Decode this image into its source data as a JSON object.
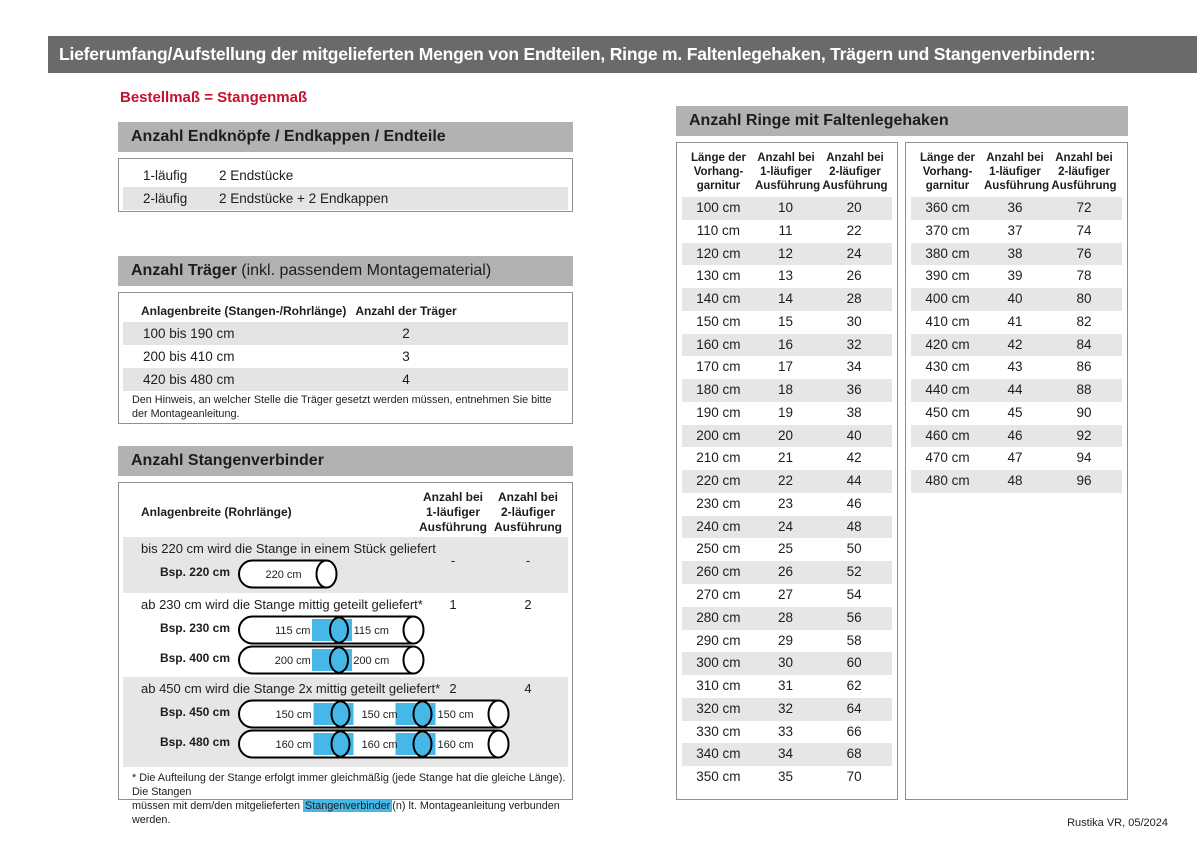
{
  "page": {
    "title": "Lieferumfang/Aufstellung der mitgelieferten Mengen von Endteilen, Ringe m. Faltenlegehaken, Trägern und Stangenverbindern:",
    "subtitle": "Bestellmaß = Stangenmaß",
    "footer": "Rustika VR, 05/2024"
  },
  "colors": {
    "header_bar": "#6a6a6a",
    "section_bar": "#b2b2b2",
    "stripe": "#e6e6e6",
    "accent_red": "#c8102e",
    "accent_blue": "#45b8e8"
  },
  "endteile": {
    "title": "Anzahl Endknöpfe / Endkappen / Endteile",
    "rows": [
      {
        "label": "1-läufig",
        "value": "2 Endstücke"
      },
      {
        "label": "2-läufig",
        "value": "2 Endstücke + 2 Endkappen"
      }
    ]
  },
  "traeger": {
    "title_bold": "Anzahl Träger",
    "title_rest": " (inkl. passendem Montagematerial)",
    "col1": "Anlagenbreite (Stangen-/Rohrlänge)",
    "col2": "Anzahl der Träger",
    "rows": [
      {
        "range": "100 bis 190 cm",
        "count": "2"
      },
      {
        "range": "200 bis 410 cm",
        "count": "3"
      },
      {
        "range": "420 bis 480 cm",
        "count": "4"
      }
    ],
    "note_lines": [
      "Den Hinweis, an welcher Stelle die Träger gesetzt werden müssen, entnehmen Sie bitte",
      "der Montageanleitung."
    ]
  },
  "verbinder": {
    "title": "Anzahl Stangenverbinder",
    "col1": "Anlagenbreite (Rohrlänge)",
    "col2_lines": [
      "Anzahl bei",
      "1-läufiger",
      "Ausführung"
    ],
    "col3_lines": [
      "Anzahl bei",
      "2-läufiger",
      "Ausführung"
    ],
    "rows": [
      {
        "text": "bis 220 cm wird die Stange in einem Stück geliefert",
        "v1": "-",
        "v2": "-",
        "examples": [
          {
            "label": "Bsp. 220 cm",
            "segments": [
              "220 cm"
            ]
          }
        ]
      },
      {
        "text": "ab 230 cm wird die Stange mittig geteilt geliefert*",
        "v1": "1",
        "v2": "2",
        "examples": [
          {
            "label": "Bsp. 230 cm",
            "segments": [
              "115 cm",
              "115 cm"
            ]
          },
          {
            "label": "Bsp. 400 cm",
            "segments": [
              "200 cm",
              "200 cm"
            ]
          }
        ]
      },
      {
        "text": "ab 450 cm wird die Stange 2x mittig geteilt geliefert*",
        "v1": "2",
        "v2": "4",
        "examples": [
          {
            "label": "Bsp. 450 cm",
            "segments": [
              "150 cm",
              "150 cm",
              "150 cm"
            ]
          },
          {
            "label": "Bsp. 480 cm",
            "segments": [
              "160 cm",
              "160 cm",
              "160 cm"
            ]
          }
        ]
      }
    ],
    "footnote_line1": "* Die Aufteilung der Stange erfolgt immer gleichmäßig (jede Stange hat die gleiche Länge). Die Stangen",
    "footnote_line2_pre": "müssen mit dem/den mitgelieferten ",
    "footnote_highlight": "Stangenverbinder",
    "footnote_line2_post": "(n) lt. Montageanleitung verbunden werden."
  },
  "ringe": {
    "title": "Anzahl Ringe mit Faltenlegehaken",
    "col_headers": [
      [
        "Länge der",
        "Vorhang-",
        "garnitur"
      ],
      [
        "Anzahl bei",
        "1-läufiger",
        "Ausführung"
      ],
      [
        "Anzahl bei",
        "2-läufiger",
        "Ausführung"
      ]
    ],
    "table1": [
      [
        "100 cm",
        "10",
        "20"
      ],
      [
        "110 cm",
        "11",
        "22"
      ],
      [
        "120 cm",
        "12",
        "24"
      ],
      [
        "130 cm",
        "13",
        "26"
      ],
      [
        "140 cm",
        "14",
        "28"
      ],
      [
        "150 cm",
        "15",
        "30"
      ],
      [
        "160 cm",
        "16",
        "32"
      ],
      [
        "170 cm",
        "17",
        "34"
      ],
      [
        "180 cm",
        "18",
        "36"
      ],
      [
        "190 cm",
        "19",
        "38"
      ],
      [
        "200 cm",
        "20",
        "40"
      ],
      [
        "210 cm",
        "21",
        "42"
      ],
      [
        "220 cm",
        "22",
        "44"
      ],
      [
        "230 cm",
        "23",
        "46"
      ],
      [
        "240 cm",
        "24",
        "48"
      ],
      [
        "250 cm",
        "25",
        "50"
      ],
      [
        "260 cm",
        "26",
        "52"
      ],
      [
        "270 cm",
        "27",
        "54"
      ],
      [
        "280 cm",
        "28",
        "56"
      ],
      [
        "290 cm",
        "29",
        "58"
      ],
      [
        "300 cm",
        "30",
        "60"
      ],
      [
        "310 cm",
        "31",
        "62"
      ],
      [
        "320 cm",
        "32",
        "64"
      ],
      [
        "330 cm",
        "33",
        "66"
      ],
      [
        "340 cm",
        "34",
        "68"
      ],
      [
        "350 cm",
        "35",
        "70"
      ]
    ],
    "table2": [
      [
        "360 cm",
        "36",
        "72"
      ],
      [
        "370 cm",
        "37",
        "74"
      ],
      [
        "380 cm",
        "38",
        "76"
      ],
      [
        "390 cm",
        "39",
        "78"
      ],
      [
        "400 cm",
        "40",
        "80"
      ],
      [
        "410 cm",
        "41",
        "82"
      ],
      [
        "420 cm",
        "42",
        "84"
      ],
      [
        "430 cm",
        "43",
        "86"
      ],
      [
        "440 cm",
        "44",
        "88"
      ],
      [
        "450 cm",
        "45",
        "90"
      ],
      [
        "460 cm",
        "46",
        "92"
      ],
      [
        "470 cm",
        "47",
        "94"
      ],
      [
        "480 cm",
        "48",
        "96"
      ]
    ]
  }
}
